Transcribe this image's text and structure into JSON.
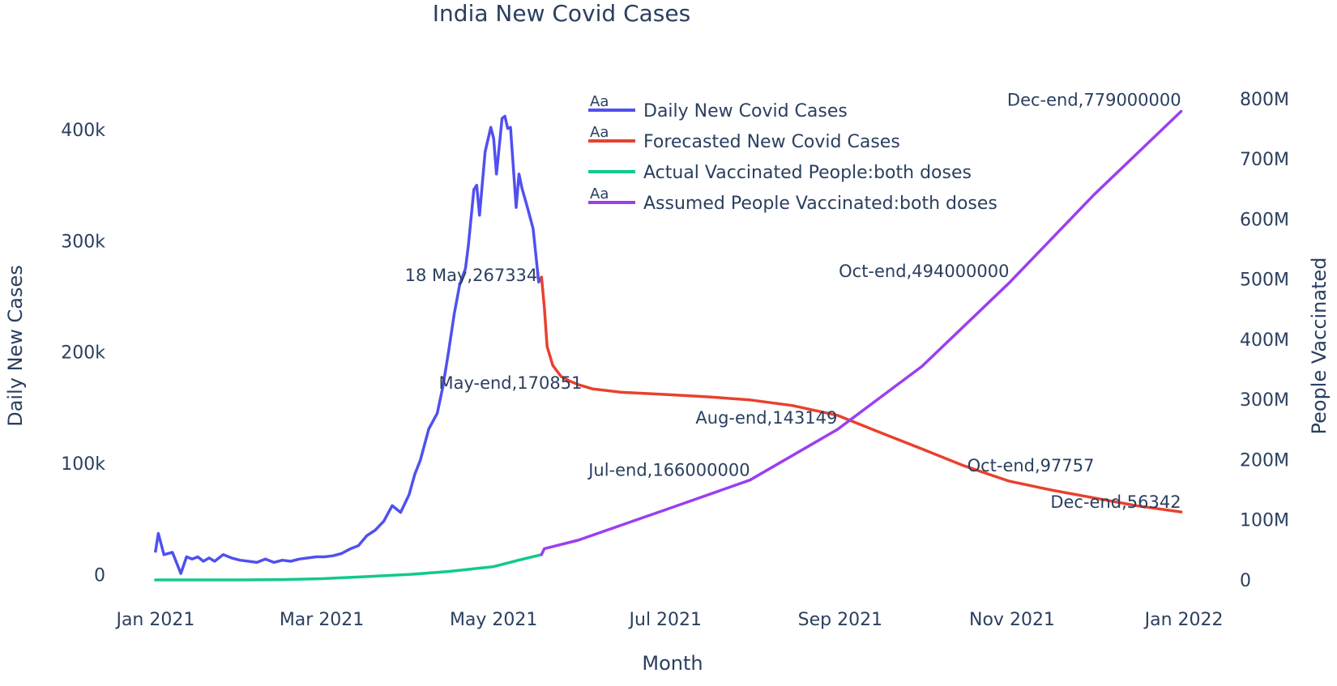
{
  "chart_data": {
    "type": "line",
    "title": "India New Covid Cases",
    "xlabel": "Month",
    "ylabel": "Daily New Cases",
    "y2label": "People Vaccinated",
    "x_ticks": [
      "Jan 2021",
      "Mar 2021",
      "May 2021",
      "Jul 2021",
      "Sep 2021",
      "Nov 2021",
      "Jan 2022"
    ],
    "x_tick_dates": [
      "2021-01-01",
      "2021-03-01",
      "2021-05-01",
      "2021-07-01",
      "2021-09-01",
      "2021-11-01",
      "2022-01-01"
    ],
    "xlim": [
      "2020-12-28",
      "2022-01-05"
    ],
    "y_ticks": [
      "0",
      "100k",
      "200k",
      "300k",
      "400k"
    ],
    "y_tick_values": [
      0,
      100000,
      200000,
      300000,
      400000
    ],
    "ylim": [
      -20000,
      440000
    ],
    "y2_ticks": [
      "0",
      "100M",
      "200M",
      "300M",
      "400M",
      "500M",
      "600M",
      "700M",
      "800M"
    ],
    "y2_tick_values": [
      0,
      100000000,
      200000000,
      300000000,
      400000000,
      500000000,
      600000000,
      700000000,
      800000000
    ],
    "y2lim": [
      -28300000,
      822800000
    ],
    "grid": false,
    "legend_position": "top-center",
    "legend_marker_text": "Aa",
    "colors": {
      "daily": "#5050f0",
      "forecast": "#e8412e",
      "actual_vacc": "#12c98a",
      "assumed_vacc": "#9b3ff0",
      "text": "#2a3f5f"
    },
    "series": [
      {
        "name": "Daily New Covid Cases",
        "axis": "y",
        "color": "#5050f0",
        "x": [
          "2021-01-01",
          "2021-01-02",
          "2021-01-04",
          "2021-01-07",
          "2021-01-10",
          "2021-01-12",
          "2021-01-14",
          "2021-01-16",
          "2021-01-18",
          "2021-01-20",
          "2021-01-22",
          "2021-01-25",
          "2021-01-28",
          "2021-01-31",
          "2021-02-03",
          "2021-02-06",
          "2021-02-09",
          "2021-02-12",
          "2021-02-15",
          "2021-02-18",
          "2021-02-21",
          "2021-02-24",
          "2021-02-27",
          "2021-03-02",
          "2021-03-05",
          "2021-03-08",
          "2021-03-11",
          "2021-03-14",
          "2021-03-17",
          "2021-03-20",
          "2021-03-23",
          "2021-03-26",
          "2021-03-29",
          "2021-04-01",
          "2021-04-03",
          "2021-04-05",
          "2021-04-08",
          "2021-04-11",
          "2021-04-13",
          "2021-04-15",
          "2021-04-17",
          "2021-04-19",
          "2021-04-21",
          "2021-04-22",
          "2021-04-24",
          "2021-04-25",
          "2021-04-26",
          "2021-04-28",
          "2021-04-30",
          "2021-05-01",
          "2021-05-02",
          "2021-05-04",
          "2021-05-05",
          "2021-05-06",
          "2021-05-07",
          "2021-05-09",
          "2021-05-10",
          "2021-05-11",
          "2021-05-13",
          "2021-05-15",
          "2021-05-17",
          "2021-05-18"
        ],
        "values": [
          21000,
          37000,
          18000,
          20000,
          1000,
          16000,
          14000,
          16000,
          12000,
          15000,
          12000,
          18000,
          15000,
          13000,
          12000,
          11000,
          14000,
          11000,
          13000,
          12000,
          14000,
          15000,
          16000,
          16000,
          17000,
          19000,
          23000,
          26000,
          35000,
          40000,
          48000,
          62000,
          56000,
          72000,
          90000,
          103000,
          131000,
          145000,
          169000,
          200000,
          234000,
          261000,
          275000,
          295000,
          346000,
          350000,
          323000,
          380000,
          402000,
          392000,
          360000,
          410000,
          412000,
          401000,
          402000,
          330000,
          360000,
          348000,
          330000,
          311000,
          263000,
          267334
        ]
      },
      {
        "name": "Forecasted New Covid Cases",
        "axis": "y",
        "color": "#e8412e",
        "x": [
          "2021-05-18",
          "2021-05-19",
          "2021-05-20",
          "2021-05-22",
          "2021-05-25",
          "2021-05-28",
          "2021-05-31",
          "2021-06-05",
          "2021-06-15",
          "2021-06-30",
          "2021-07-15",
          "2021-07-31",
          "2021-08-15",
          "2021-08-31",
          "2021-09-15",
          "2021-09-30",
          "2021-10-15",
          "2021-10-31",
          "2021-11-15",
          "2021-11-30",
          "2021-12-15",
          "2021-12-31"
        ],
        "values": [
          267334,
          240000,
          205000,
          188000,
          178000,
          174000,
          170851,
          167000,
          164000,
          162000,
          160000,
          157000,
          152000,
          143149,
          128000,
          113000,
          97757,
          84000,
          76000,
          69000,
          62000,
          56342
        ]
      },
      {
        "name": "Actual Vaccinated People:both doses",
        "axis": "y2",
        "color": "#12c98a",
        "x": [
          "2021-01-01",
          "2021-01-16",
          "2021-02-01",
          "2021-02-15",
          "2021-03-01",
          "2021-03-15",
          "2021-04-01",
          "2021-04-15",
          "2021-05-01",
          "2021-05-10",
          "2021-05-18"
        ],
        "values": [
          0,
          0,
          0,
          500000,
          2000000,
          5000000,
          9000000,
          14000000,
          22000000,
          33000000,
          42000000
        ]
      },
      {
        "name": "Assumed People Vaccinated:both doses",
        "axis": "y2",
        "color": "#9b3ff0",
        "x": [
          "2021-05-18",
          "2021-05-19",
          "2021-05-31",
          "2021-06-30",
          "2021-07-31",
          "2021-08-31",
          "2021-09-30",
          "2021-10-31",
          "2021-11-30",
          "2021-12-31"
        ],
        "values": [
          42000000,
          52000000,
          66000000,
          115000000,
          166000000,
          250000000,
          355000000,
          494000000,
          640000000,
          779000000
        ]
      }
    ],
    "annotations": [
      {
        "text": "18 May,267334",
        "axis": "y",
        "x": "2021-05-18",
        "y": 267334,
        "anchor": "end",
        "dx": -5,
        "dy": 5
      },
      {
        "text": "May-end,170851",
        "axis": "y",
        "x": "2021-05-31",
        "y": 170851,
        "anchor": "end",
        "dx": 5,
        "dy": 5
      },
      {
        "text": "Aug-end,143149",
        "axis": "y",
        "x": "2021-08-31",
        "y": 143149,
        "anchor": "end",
        "dx": 0,
        "dy": 10
      },
      {
        "text": "Oct-end,97757",
        "axis": "y",
        "x": "2021-10-31",
        "y": 97757,
        "anchor": "end",
        "dx": 105,
        "dy": 7
      },
      {
        "text": "Dec-end,56342",
        "axis": "y",
        "x": "2021-12-31",
        "y": 56342,
        "anchor": "end",
        "dx": 0,
        "dy": -5
      },
      {
        "text": "Jul-end,166000000",
        "axis": "y2",
        "x": "2021-07-31",
        "y": 166000000,
        "anchor": "end",
        "dx": 0,
        "dy": -5
      },
      {
        "text": "Oct-end,494000000",
        "axis": "y2",
        "x": "2021-10-31",
        "y": 494000000,
        "anchor": "end",
        "dx": 0,
        "dy": -7
      },
      {
        "text": "Dec-end,779000000",
        "axis": "y2",
        "x": "2021-12-31",
        "y": 779000000,
        "anchor": "end",
        "dx": 0,
        "dy": -7
      }
    ]
  }
}
